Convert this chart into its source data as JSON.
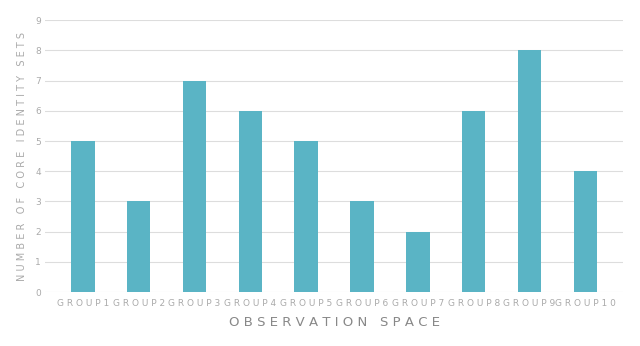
{
  "categories": [
    "GROUP1",
    "GROUP2",
    "GROUP3",
    "GROUP4",
    "GROUP5",
    "GROUP6",
    "GROUP7",
    "GROUP8",
    "GROUP9",
    "GROUP10"
  ],
  "values": [
    5,
    3,
    7,
    6,
    5,
    3,
    2,
    6,
    8,
    4
  ],
  "bar_color": "#5AB4C5",
  "xlabel": "OBSERVATION SPACE",
  "ylabel": "NUMBER OF CORE IDENTITY SETS",
  "ylim": [
    0,
    9
  ],
  "yticks": [
    0,
    1,
    2,
    3,
    4,
    5,
    6,
    7,
    8,
    9
  ],
  "background_color": "#ffffff",
  "grid_color": "#dddddd",
  "text_color": "#aaaaaa",
  "bar_width": 0.42,
  "xlabel_fontsize": 9.5,
  "ylabel_fontsize": 7.0,
  "tick_fontsize": 6.5,
  "xlabel_color": "#888888",
  "ylabel_color": "#aaaaaa"
}
